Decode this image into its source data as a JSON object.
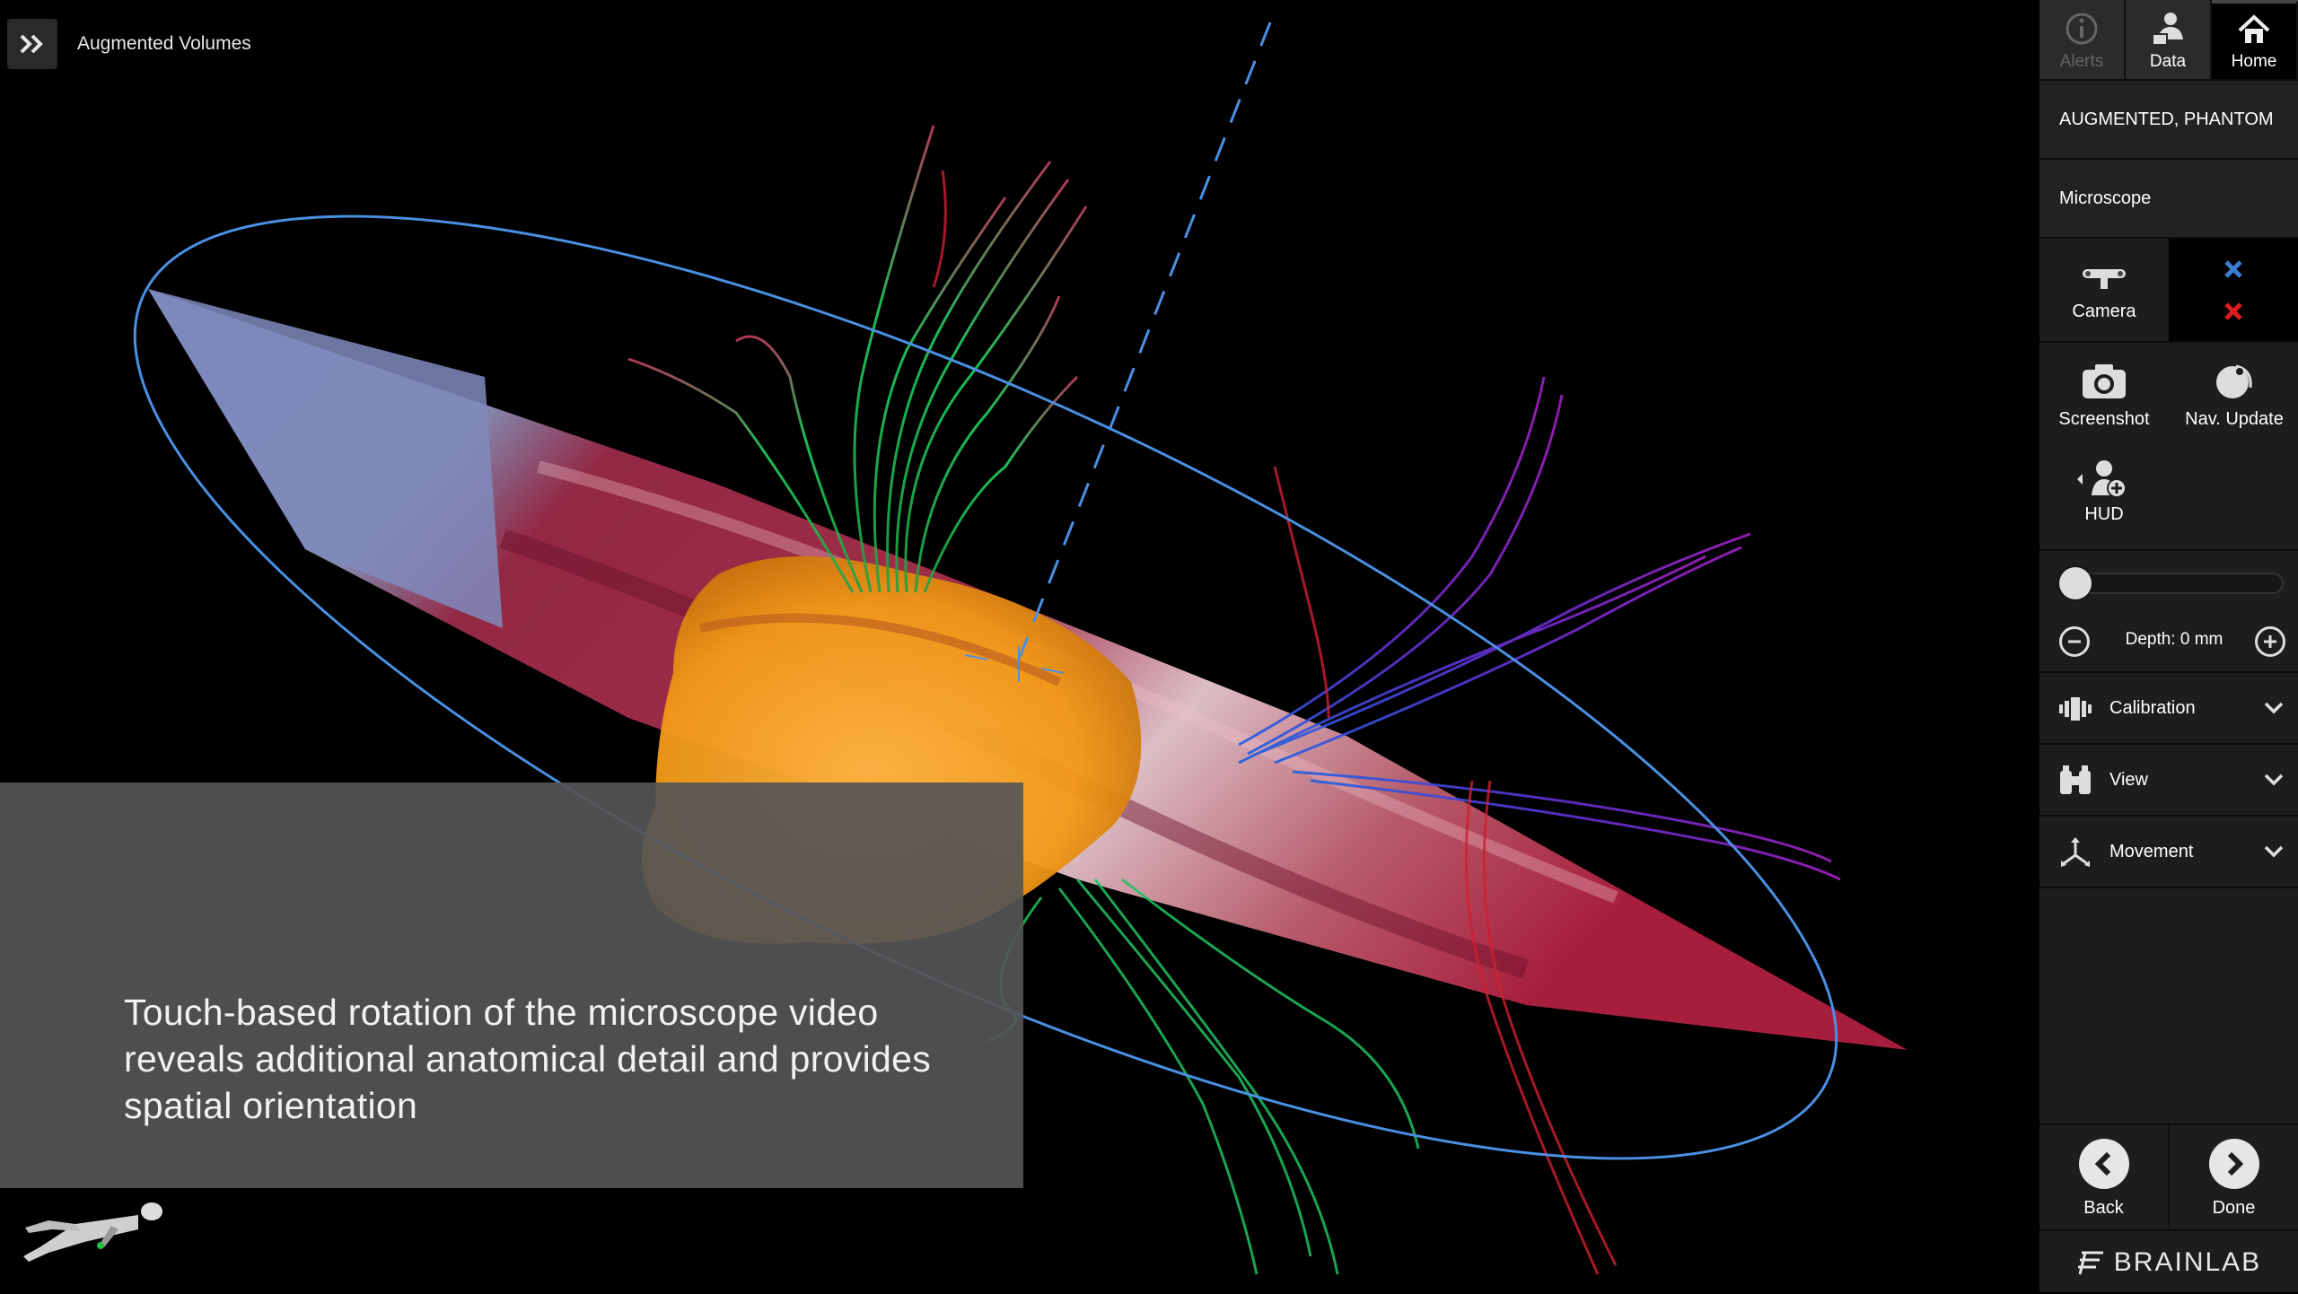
{
  "header": {
    "title": "Augmented Volumes"
  },
  "caption": {
    "text": "Touch-based rotation of the microscope video reveals additional anatomical detail and provides spatial orientation"
  },
  "tabs": [
    {
      "label": "Alerts",
      "icon": "info-icon",
      "state": "disabled"
    },
    {
      "label": "Data",
      "icon": "patient-data-icon",
      "state": "normal"
    },
    {
      "label": "Home",
      "icon": "home-icon",
      "state": "active"
    }
  ],
  "patient": {
    "name": "AUGMENTED, PHANTOM"
  },
  "device": {
    "label": "Microscope"
  },
  "camera": {
    "label": "Camera",
    "indicators": [
      {
        "icon": "blue-marker-icon",
        "color": "#3a7bd5"
      },
      {
        "icon": "red-marker-icon",
        "color": "#e01b1b"
      }
    ]
  },
  "tools": {
    "screenshot": "Screenshot",
    "nav_update": "Nav. Update",
    "hud": "HUD"
  },
  "depth": {
    "label": "Depth: 0 mm",
    "value_mm": 0
  },
  "accordions": [
    {
      "label": "Calibration",
      "icon": "calibration-icon"
    },
    {
      "label": "View",
      "icon": "binoculars-icon"
    },
    {
      "label": "Movement",
      "icon": "movement-icon"
    }
  ],
  "nav": {
    "back": "Back",
    "done": "Done"
  },
  "brand": {
    "name": "BRAINLAB"
  },
  "colors": {
    "accent_blue": "#4a90e2",
    "tumor_orange": "#f5a01a",
    "panel_bg": "#1d1d1d"
  }
}
